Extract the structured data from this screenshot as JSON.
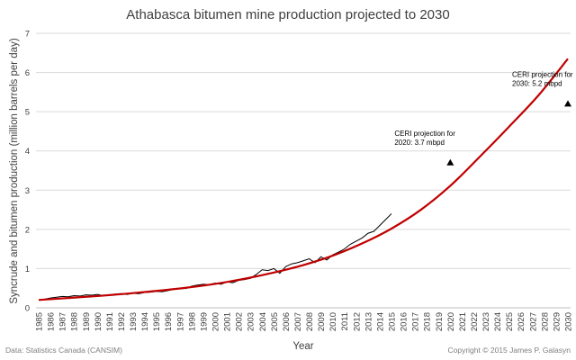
{
  "chart_data": {
    "type": "line",
    "title": "Athabasca bitumen mine production projected to 2030",
    "xlabel": "Year",
    "ylabel": "Syncrude and bitumen production (million barrels per day)",
    "xlim": [
      1985,
      2030
    ],
    "ylim": [
      0,
      7
    ],
    "yticks": [
      0,
      1,
      2,
      3,
      4,
      5,
      6,
      7
    ],
    "xticks": [
      1985,
      1986,
      1987,
      1988,
      1989,
      1990,
      1991,
      1992,
      1993,
      1994,
      1995,
      1996,
      1997,
      1998,
      1999,
      2000,
      2001,
      2002,
      2003,
      2004,
      2005,
      2006,
      2007,
      2008,
      2009,
      2010,
      2011,
      2012,
      2013,
      2014,
      2015,
      2016,
      2017,
      2018,
      2019,
      2020,
      2021,
      2022,
      2023,
      2024,
      2025,
      2026,
      2027,
      2028,
      2029,
      2030
    ],
    "grid": {
      "horizontal": true,
      "vertical": false
    },
    "series": [
      {
        "kind": "actual",
        "color": "#000000",
        "x": [
          1985,
          1985.5,
          1986,
          1986.5,
          1987,
          1987.5,
          1988,
          1988.5,
          1989,
          1989.5,
          1990,
          1990.5,
          1991,
          1991.5,
          1992,
          1992.5,
          1993,
          1993.5,
          1994,
          1994.5,
          1995,
          1995.5,
          1996,
          1996.5,
          1997,
          1997.5,
          1998,
          1998.5,
          1999,
          1999.5,
          2000,
          2000.5,
          2001,
          2001.5,
          2002,
          2002.5,
          2003,
          2003.5,
          2004,
          2004.5,
          2005,
          2005.5,
          2006,
          2006.5,
          2007,
          2007.5,
          2008,
          2008.5,
          2009,
          2009.5,
          2010,
          2010.5,
          2011,
          2011.5,
          2012,
          2012.5,
          2013,
          2013.5,
          2014,
          2014.5,
          2015
        ],
        "y": [
          0.2,
          0.22,
          0.25,
          0.27,
          0.29,
          0.28,
          0.31,
          0.3,
          0.33,
          0.32,
          0.34,
          0.31,
          0.33,
          0.35,
          0.36,
          0.34,
          0.37,
          0.36,
          0.39,
          0.4,
          0.42,
          0.41,
          0.44,
          0.47,
          0.5,
          0.49,
          0.55,
          0.58,
          0.6,
          0.59,
          0.63,
          0.6,
          0.66,
          0.64,
          0.7,
          0.72,
          0.75,
          0.85,
          0.97,
          0.95,
          1.0,
          0.88,
          1.05,
          1.12,
          1.15,
          1.2,
          1.25,
          1.15,
          1.3,
          1.22,
          1.35,
          1.42,
          1.5,
          1.62,
          1.7,
          1.78,
          1.9,
          1.95,
          2.1,
          2.25,
          2.4
        ]
      },
      {
        "kind": "trend",
        "color": "#c00000",
        "x": [
          1985,
          1987.5,
          1990,
          1992.5,
          1995,
          1997.5,
          2000,
          2002.5,
          2005,
          2007.5,
          2010,
          2012.5,
          2015,
          2017.5,
          2020,
          2022.5,
          2025,
          2027.5,
          2030
        ],
        "y": [
          0.2,
          0.25,
          0.3,
          0.36,
          0.43,
          0.51,
          0.61,
          0.74,
          0.9,
          1.09,
          1.33,
          1.64,
          2.02,
          2.5,
          3.11,
          3.85,
          4.62,
          5.42,
          6.35
        ]
      }
    ],
    "annotations": [
      {
        "x": 2020,
        "y": 3.7,
        "marker": "triangle",
        "text_lines": [
          "CERI projection for",
          "2020: 3.7 mbpd"
        ]
      },
      {
        "x": 2030,
        "y": 5.2,
        "marker": "triangle",
        "text_lines": [
          "CERI projection for",
          "2030: 5.2 mbpd"
        ]
      }
    ]
  },
  "footer": {
    "source": "Data: Statistics Canada (CANSIM)",
    "copyright": "Copyright © 2015 James P. Galasyn"
  }
}
